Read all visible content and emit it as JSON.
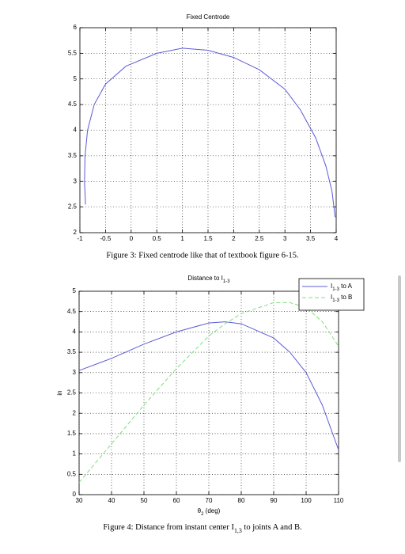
{
  "chart_data": [
    {
      "type": "line",
      "title": "Fixed Centrode",
      "caption": "Figure 3: Fixed centrode like that of textbook figure 6-15.",
      "x": [
        -0.89,
        -0.91,
        -0.9,
        -0.85,
        -0.72,
        -0.5,
        -0.1,
        0.5,
        1.0,
        1.5,
        2.0,
        2.5,
        3.0,
        3.3,
        3.6,
        3.8,
        3.92,
        3.98
      ],
      "values": [
        2.55,
        3.0,
        3.5,
        4.0,
        4.5,
        4.9,
        5.25,
        5.5,
        5.6,
        5.56,
        5.42,
        5.18,
        4.8,
        4.4,
        3.85,
        3.3,
        2.8,
        2.3
      ],
      "color": "#5b5bd6",
      "xlim": [
        -1,
        4
      ],
      "xticks": [
        -1,
        -0.5,
        0,
        0.5,
        1,
        1.5,
        2,
        2.5,
        3,
        3.5,
        4
      ],
      "ylim": [
        2,
        6
      ],
      "yticks": [
        2,
        2.5,
        3,
        3.5,
        4,
        4.5,
        5,
        5.5,
        6
      ],
      "grid": true
    },
    {
      "type": "line",
      "title": "Distance to I1-3",
      "caption": "Figure 4: Distance from instant center I1,3 to joints A and B.",
      "x_label": "θ2 (deg)",
      "y_label": "in",
      "x": [
        30,
        40,
        50,
        60,
        70,
        75,
        80,
        90,
        95,
        100,
        105,
        110
      ],
      "series": [
        {
          "name": "I1-3 to A",
          "color": "#5b5bd6",
          "linestyle": "solid",
          "values": [
            3.05,
            3.35,
            3.7,
            4.0,
            4.22,
            4.25,
            4.2,
            3.85,
            3.5,
            3.0,
            2.2,
            1.1
          ]
        },
        {
          "name": "I1-3 to B",
          "color": "#7ee07e",
          "linestyle": "dashed",
          "values": [
            0.3,
            1.25,
            2.2,
            3.1,
            3.9,
            4.2,
            4.45,
            4.72,
            4.72,
            4.6,
            4.25,
            3.65
          ]
        }
      ],
      "xlim": [
        30,
        110
      ],
      "xticks": [
        30,
        40,
        50,
        60,
        70,
        80,
        90,
        100,
        110
      ],
      "ylim": [
        0,
        5
      ],
      "yticks": [
        0,
        0.5,
        1,
        1.5,
        2,
        2.5,
        3,
        3.5,
        4,
        4.5,
        5
      ],
      "grid": true,
      "legend": "upper right"
    }
  ]
}
